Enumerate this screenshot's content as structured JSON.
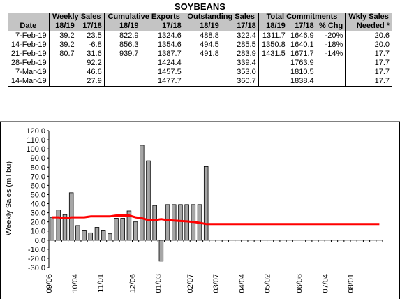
{
  "title": "SOYBEANS",
  "table": {
    "groups": [
      "",
      "Weekly Sales",
      "Cumulative Exports",
      "Outstanding Sales",
      "Total Commitments",
      "Wkly Sales"
    ],
    "subheaders": [
      "Date",
      "18/19",
      "17/18",
      "18/19",
      "17/18",
      "18/19",
      "17/18",
      "18/19",
      "17/18",
      "% Chg",
      "Needed *"
    ],
    "rows": [
      [
        "7-Feb-19",
        "39.2",
        "23.5",
        "822.9",
        "1324.6",
        "488.8",
        "322.4",
        "1311.7",
        "1646.9",
        "-20%",
        "20.6"
      ],
      [
        "14-Feb-19",
        "39.2",
        "-6.8",
        "856.3",
        "1354.6",
        "494.5",
        "285.5",
        "1350.8",
        "1640.1",
        "-18%",
        "20.0"
      ],
      [
        "21-Feb-19",
        "80.7",
        "31.6",
        "939.7",
        "1387.7",
        "491.8",
        "283.9",
        "1431.5",
        "1671.7",
        "-14%",
        "17.7"
      ],
      [
        "28-Feb-19",
        "",
        "92.2",
        "",
        "1424.4",
        "",
        "339.4",
        "",
        "1763.9",
        "",
        "17.7"
      ],
      [
        "7-Mar-19",
        "",
        "46.6",
        "",
        "1457.5",
        "",
        "353.0",
        "",
        "1810.5",
        "",
        "17.7"
      ],
      [
        "14-Mar-19",
        "",
        "27.9",
        "",
        "1477.7",
        "",
        "360.7",
        "",
        "1838.4",
        "",
        "17.7"
      ]
    ]
  },
  "chart_data": {
    "type": "bar",
    "ylabel": "Weekly Sales (mil bu)",
    "ylim": [
      -30,
      120
    ],
    "yticks": [
      "120.0",
      "110.0",
      "100.0",
      "90.0",
      "80.0",
      "70.0",
      "60.0",
      "50.0",
      "40.0",
      "30.0",
      "20.0",
      "10.0",
      "0.0",
      "-10.0",
      "-20.0",
      "-30.0"
    ],
    "xticks": [
      "09/06",
      "10/04",
      "11/01",
      "12/06",
      "01/03",
      "02/07",
      "03/07",
      "04/04",
      "05/02",
      "06/06",
      "07/04",
      "08/01"
    ],
    "weeks_total": 52,
    "series": [
      {
        "values": [
          25,
          33,
          28,
          52,
          16,
          11,
          8,
          14,
          11,
          7,
          24,
          24,
          32,
          20,
          104,
          87,
          38,
          -23,
          39,
          39,
          39,
          39,
          39,
          39,
          80.7
        ]
      },
      {
        "values": [
          25,
          25,
          24,
          25,
          25,
          25,
          26,
          26,
          26,
          26,
          27,
          27,
          27,
          25,
          24,
          22,
          22,
          23,
          22,
          21.5,
          21,
          20.6,
          20,
          19,
          17.7,
          17.7,
          17.7,
          17.7,
          17.7,
          17.7,
          17.7,
          17.7,
          17.7,
          17.7,
          17.7,
          17.7,
          17.7,
          17.7,
          17.7,
          17.7,
          17.7,
          17.7,
          17.7,
          17.7,
          17.7,
          17.7,
          17.7,
          17.7,
          17.7,
          17.7,
          17.7,
          17.7
        ]
      }
    ],
    "colors": {
      "bar": "#a6a6a6",
      "line": "#ff0000",
      "table_header": "#c4c4c4"
    },
    "grid": false
  }
}
